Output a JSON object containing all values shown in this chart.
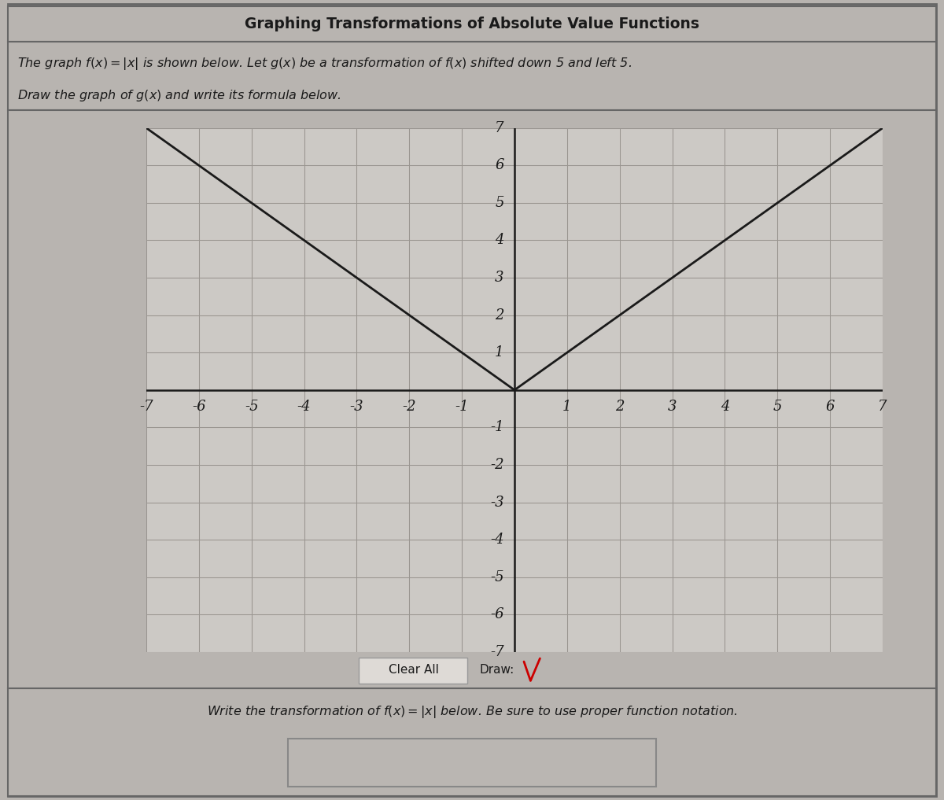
{
  "title": "Graphing Transformations of Absolute Value Functions",
  "desc_line1": "The graph $f(x) = |x|$ is shown below. Let $g(x)$ be a transformation of $f(x)$ shifted down 5 and left 5.",
  "desc_line2": "Draw the graph of $g(x)$ and write its formula below.",
  "xmin": -7,
  "xmax": 7,
  "ymin": -7,
  "ymax": 7,
  "fx_color": "#1a1a1a",
  "fx_linewidth": 2.0,
  "background_color": "#b8b4b0",
  "grid_color": "#999590",
  "grid_area_color": "#ccc9c5",
  "axis_color": "#1a1a1a",
  "tick_label_color": "#1a1a1a",
  "tick_fontsize": 13,
  "bottom_text": "Write the transformation of $f(x) = |x|$ below. Be sure to use proper function notation.",
  "clear_all_text": "Clear All",
  "draw_text": "Draw:",
  "draw_icon_color": "#cc0000",
  "border_color": "#666666"
}
